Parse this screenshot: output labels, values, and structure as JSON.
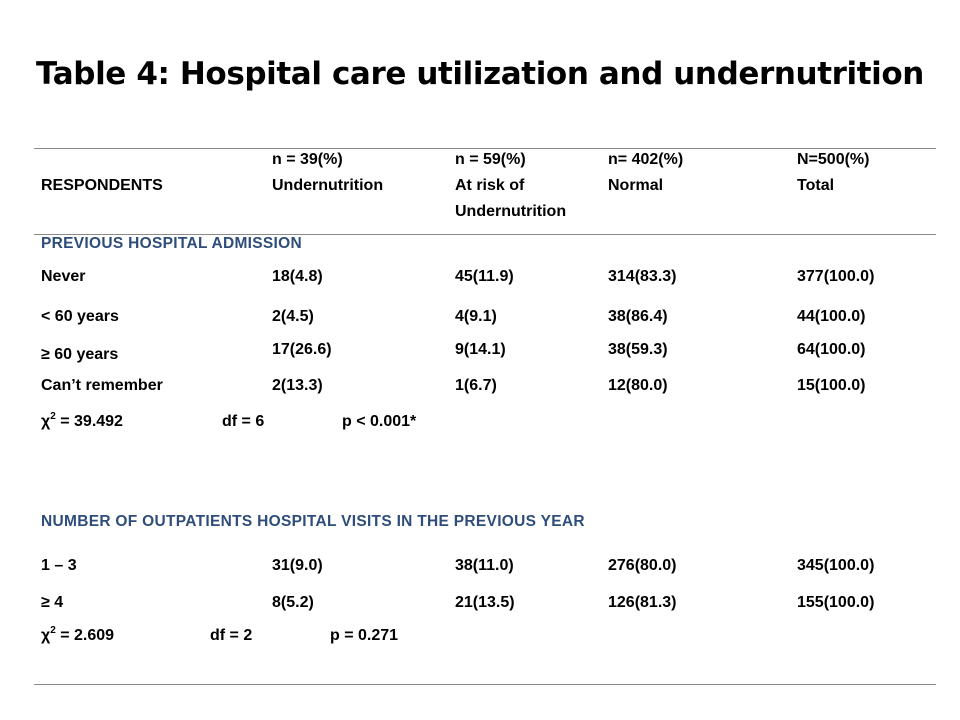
{
  "title": "Table 4: Hospital care utilization and undernutrition",
  "header": {
    "respondents": "RESPONDENTS",
    "col1": {
      "n": "n = 39(%)",
      "label": "Undernutrition"
    },
    "col2": {
      "n": "n = 59(%)",
      "label1": "At risk of",
      "label2": "Undernutrition"
    },
    "col3": {
      "n": "n= 402(%)",
      "label": "Normal"
    },
    "col4": {
      "n": "N=500(%)",
      "label": "Total"
    }
  },
  "section1": {
    "title": "PREVIOUS HOSPITAL ADMISSION",
    "rows": [
      [
        "Never",
        "18(4.8)",
        "45(11.9)",
        "314(83.3)",
        "377(100.0)"
      ],
      [
        "< 60 years",
        "2(4.5)",
        "4(9.1)",
        "38(86.4)",
        "44(100.0)"
      ],
      [
        "≥ 60 years",
        "17(26.6)",
        "9(14.1)",
        "38(59.3)",
        "64(100.0)"
      ],
      [
        "Can’t remember",
        "2(13.3)",
        "1(6.7)",
        "12(80.0)",
        "15(100.0)"
      ]
    ],
    "stats": {
      "chi_sym": "χ",
      "chi_sup": "2",
      "chi_val": " = 39.492",
      "df": "df = 6",
      "p": "p < 0.001*"
    }
  },
  "section2": {
    "title": "NUMBER OF OUTPATIENTS HOSPITAL VISITS IN THE PREVIOUS YEAR",
    "rows": [
      [
        "1 – 3",
        "31(9.0)",
        "38(11.0)",
        "276(80.0)",
        "345(100.0)"
      ],
      [
        "≥ 4",
        "8(5.2)",
        "21(13.5)",
        "126(81.3)",
        "155(100.0)"
      ]
    ],
    "stats": {
      "chi_sym": "χ",
      "chi_sup": "2",
      "chi_val": " = 2.609",
      "df": "df = 2",
      "p": "p = 0.271"
    }
  }
}
